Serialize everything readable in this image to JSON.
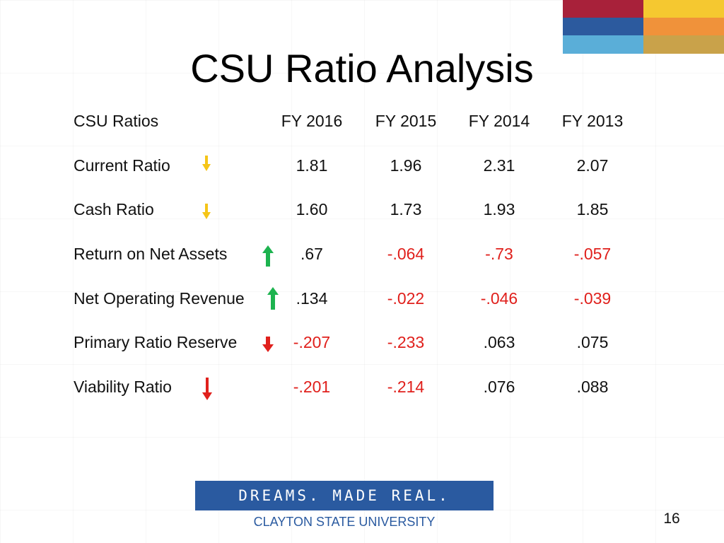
{
  "slide": {
    "title": "CSU Ratio Analysis",
    "page_number": "16"
  },
  "table": {
    "header_label": "CSU Ratios",
    "columns": [
      "FY 2016",
      "FY 2015",
      "FY 2014",
      "FY 2013"
    ],
    "rows": [
      {
        "label": "Current Ratio",
        "trend": "down",
        "trend_color": "#f5c518",
        "values": [
          "1.81",
          "1.96",
          "2.31",
          "2.07"
        ],
        "negative": [
          false,
          false,
          false,
          false
        ]
      },
      {
        "label": "Cash Ratio",
        "trend": "down",
        "trend_color": "#f5c518",
        "values": [
          "1.60",
          "1.73",
          "1.93",
          "1.85"
        ],
        "negative": [
          false,
          false,
          false,
          false
        ]
      },
      {
        "label": "Return on Net Assets",
        "trend": "up",
        "trend_color": "#1db34f",
        "values": [
          ".67",
          "-.064",
          "-.73",
          "-.057"
        ],
        "negative": [
          false,
          true,
          true,
          true
        ]
      },
      {
        "label": "Net Operating Revenue",
        "trend": "up",
        "trend_color": "#1db34f",
        "values": [
          ".134",
          "-.022",
          "-.046",
          "-.039"
        ],
        "negative": [
          false,
          true,
          true,
          true
        ]
      },
      {
        "label": "Primary Ratio Reserve",
        "trend": "down",
        "trend_color": "#e0201c",
        "values": [
          "-.207",
          "-.233",
          ".063",
          ".075"
        ],
        "negative": [
          true,
          true,
          false,
          false
        ]
      },
      {
        "label": "Viability Ratio",
        "trend": "down",
        "trend_color": "#e0201c",
        "values": [
          "-.201",
          "-.214",
          ".076",
          ".088"
        ],
        "negative": [
          true,
          true,
          false,
          false
        ]
      }
    ]
  },
  "footer": {
    "banner_text": "DREAMS. MADE REAL.",
    "university": "CLAYTON STATE UNIVERSITY"
  },
  "colors": {
    "negative_value": "#e0201c",
    "banner_blue": "#2a5aa0"
  }
}
